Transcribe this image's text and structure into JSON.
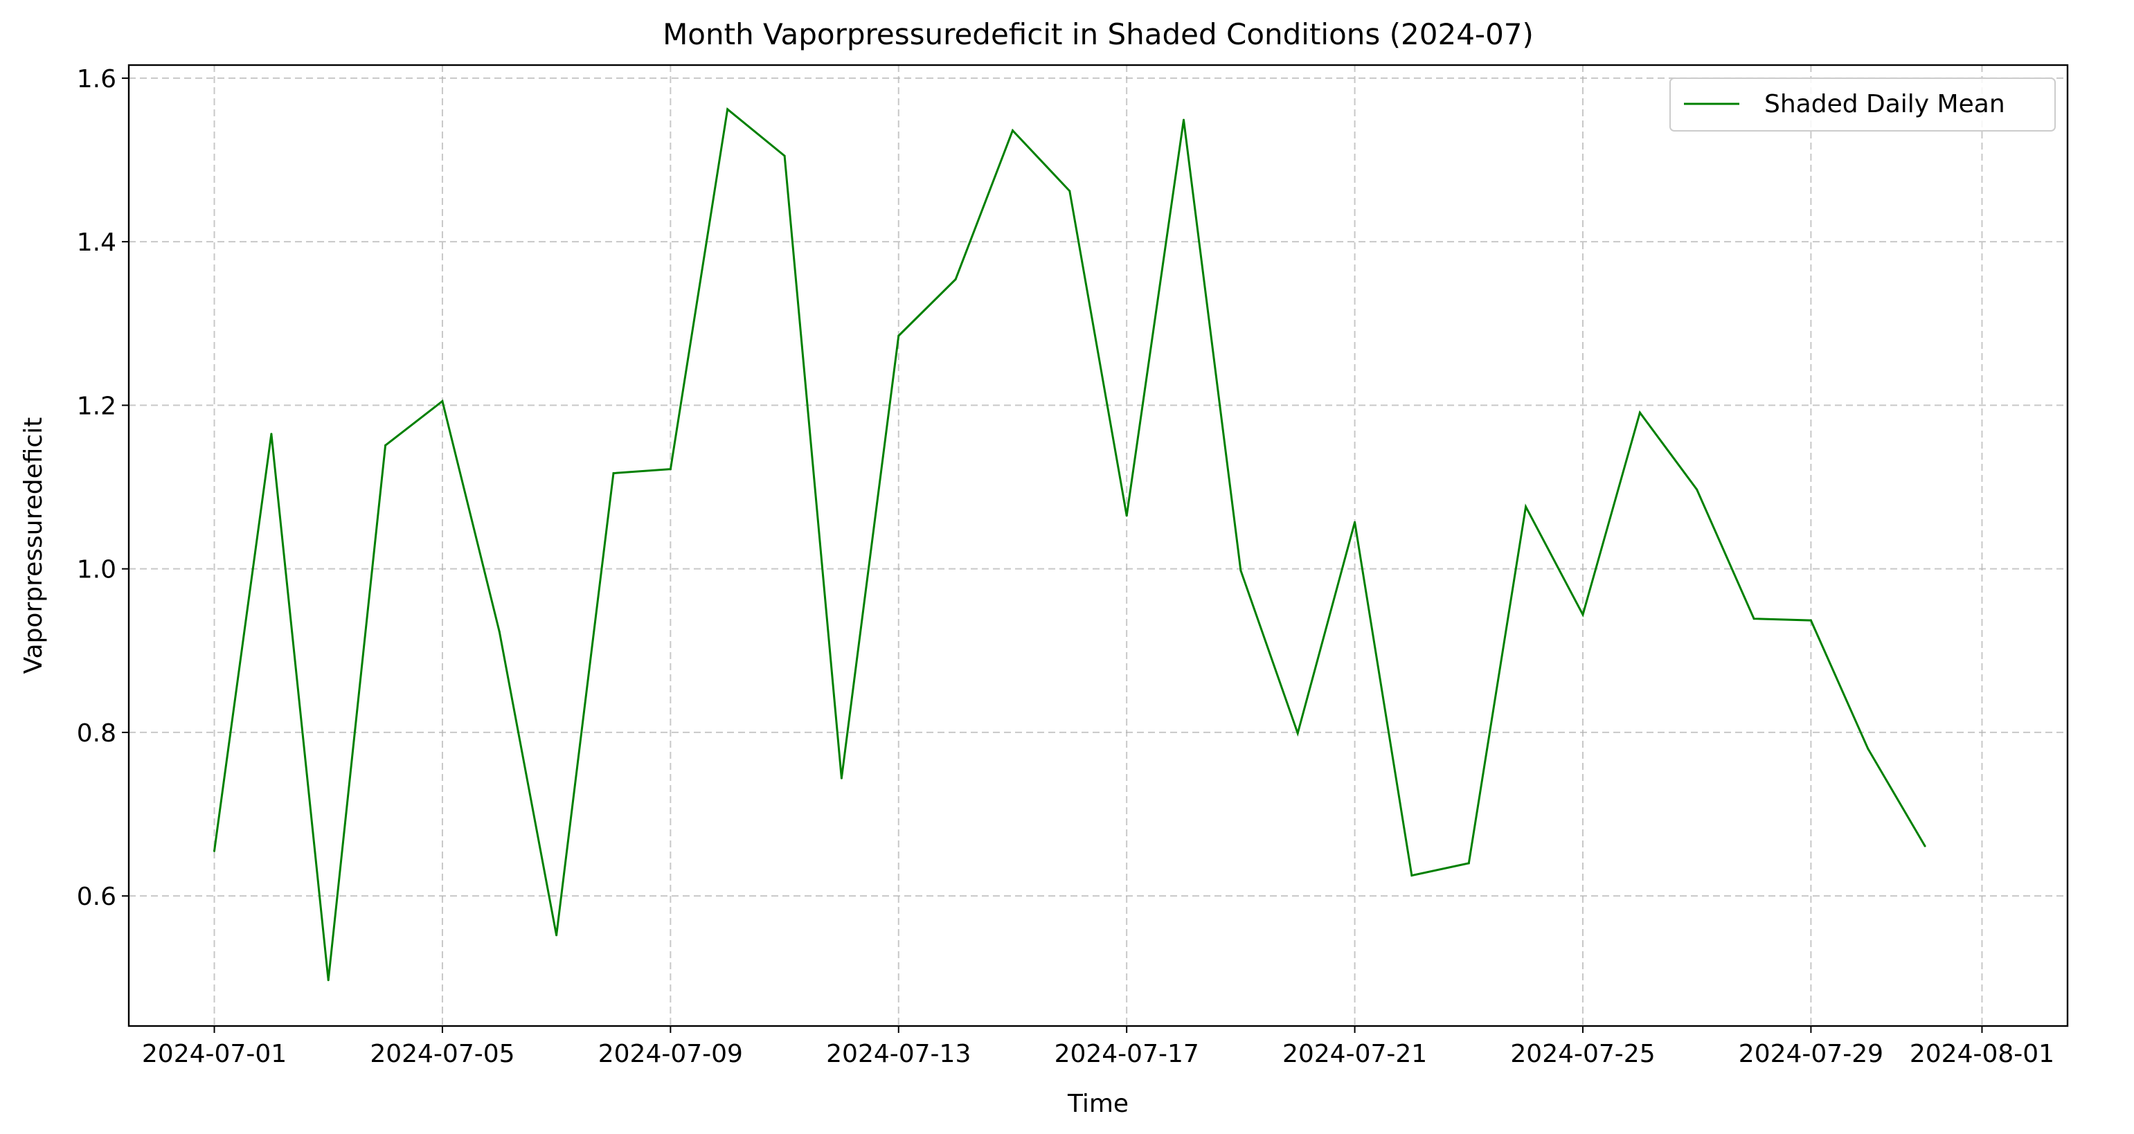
{
  "chart_data": {
    "type": "line",
    "title": "Month Vaporpressuredeficit in Shaded Conditions (2024-07)",
    "xlabel": "Time",
    "ylabel": "Vaporpressuredeficit",
    "x_tick_labels": [
      "2024-07-01",
      "2024-07-05",
      "2024-07-09",
      "2024-07-13",
      "2024-07-17",
      "2024-07-21",
      "2024-07-25",
      "2024-07-29",
      "2024-08-01"
    ],
    "y_tick_labels": [
      "0.6",
      "0.8",
      "1.0",
      "1.2",
      "1.4",
      "1.6"
    ],
    "xlim": [
      "2024-06-29.5",
      "2024-08-02.5"
    ],
    "ylim": [
      0.441,
      1.616
    ],
    "grid": true,
    "legend_position": "top-right",
    "series": [
      {
        "name": "Shaded Daily Mean",
        "color": "#008000",
        "x": [
          "2024-07-01",
          "2024-07-02",
          "2024-07-03",
          "2024-07-04",
          "2024-07-05",
          "2024-07-06",
          "2024-07-07",
          "2024-07-08",
          "2024-07-09",
          "2024-07-10",
          "2024-07-11",
          "2024-07-12",
          "2024-07-13",
          "2024-07-14",
          "2024-07-15",
          "2024-07-16",
          "2024-07-17",
          "2024-07-18",
          "2024-07-19",
          "2024-07-20",
          "2024-07-21",
          "2024-07-22",
          "2024-07-23",
          "2024-07-24",
          "2024-07-25",
          "2024-07-26",
          "2024-07-27",
          "2024-07-28",
          "2024-07-29",
          "2024-07-30",
          "2024-07-31"
        ],
        "values": [
          0.655,
          1.165,
          0.497,
          1.151,
          1.205,
          0.923,
          0.552,
          1.117,
          1.122,
          1.562,
          1.505,
          0.744,
          1.285,
          1.354,
          1.536,
          1.462,
          1.065,
          1.549,
          0.998,
          0.799,
          1.057,
          0.625,
          0.64,
          1.076,
          0.944,
          1.191,
          1.097,
          0.939,
          0.937,
          0.78,
          0.661
        ]
      }
    ]
  }
}
